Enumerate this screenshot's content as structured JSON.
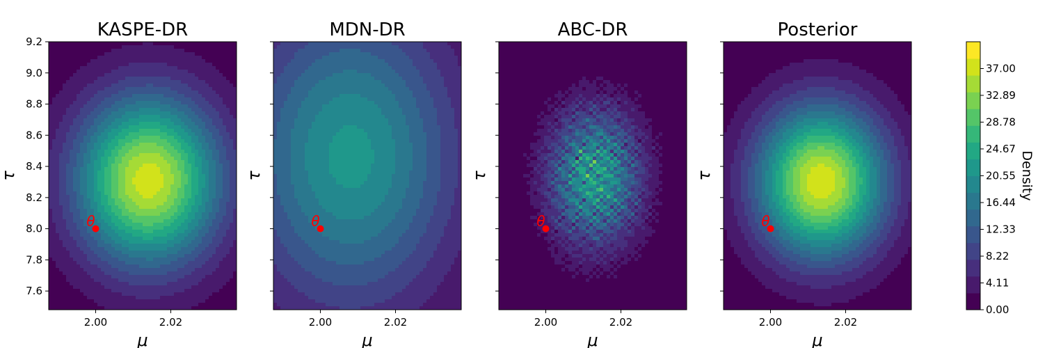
{
  "colors": {
    "viridis": [
      "#440154",
      "#481a6c",
      "#472f7d",
      "#414487",
      "#39568c",
      "#31688e",
      "#2a788e",
      "#23888e",
      "#1f988b",
      "#22a884",
      "#35b779",
      "#54c568",
      "#7ad151",
      "#a5db36",
      "#d2e21b",
      "#fde725"
    ],
    "marker": "#ff0000"
  },
  "chart_data": [
    {
      "type": "contour",
      "title": "KASPE-DR",
      "xlabel": "μ",
      "ylabel": "τ",
      "xlim": [
        1.9875,
        2.0375
      ],
      "ylim": [
        7.48,
        9.2
      ],
      "x_ticks": [
        "2.00",
        "2.02"
      ],
      "y_ticks": [
        "7.6",
        "7.8",
        "8.0",
        "8.2",
        "8.4",
        "8.6",
        "8.8",
        "9.0",
        "9.2"
      ],
      "peak": {
        "mu": 2.014,
        "tau": 8.31,
        "density": 37.5
      },
      "spread": {
        "mu": 0.0135,
        "tau": 0.38
      },
      "texture": "smooth",
      "true_theta": {
        "mu": 2.0,
        "tau": 8.0,
        "label": "θ"
      }
    },
    {
      "type": "contour",
      "title": "MDN-DR",
      "xlabel": "μ",
      "ylabel": "τ",
      "xlim": [
        1.9875,
        2.0375
      ],
      "ylim": [
        7.48,
        9.2
      ],
      "x_ticks": [
        "2.00",
        "2.02"
      ],
      "y_ticks": [
        "7.6",
        "7.8",
        "8.0",
        "8.2",
        "8.4",
        "8.6",
        "8.8",
        "9.0",
        "9.2"
      ],
      "peak": {
        "mu": 2.008,
        "tau": 8.46,
        "density": 21.5
      },
      "spread": {
        "mu": 0.02,
        "tau": 0.68
      },
      "texture": "smooth",
      "true_theta": {
        "mu": 2.0,
        "tau": 8.0,
        "label": "θ"
      }
    },
    {
      "type": "contour",
      "title": "ABC-DR",
      "xlabel": "μ",
      "ylabel": "τ",
      "xlim": [
        1.9875,
        2.0375
      ],
      "ylim": [
        7.48,
        9.2
      ],
      "x_ticks": [
        "2.00",
        "2.02"
      ],
      "y_ticks": [
        "7.6",
        "7.8",
        "8.0",
        "8.2",
        "8.4",
        "8.6",
        "8.8",
        "9.0",
        "9.2"
      ],
      "peak": {
        "mu": 2.013,
        "tau": 8.33,
        "density": 28.0
      },
      "spread": {
        "mu": 0.0085,
        "tau": 0.3
      },
      "texture": "noisy",
      "true_theta": {
        "mu": 2.0,
        "tau": 8.0,
        "label": "θ"
      }
    },
    {
      "type": "contour",
      "title": "Posterior",
      "xlabel": "μ",
      "ylabel": "τ",
      "xlim": [
        1.9875,
        2.0375
      ],
      "ylim": [
        7.48,
        9.2
      ],
      "x_ticks": [
        "2.00",
        "2.02"
      ],
      "y_ticks": [
        "7.6",
        "7.8",
        "8.0",
        "8.2",
        "8.4",
        "8.6",
        "8.8",
        "9.0",
        "9.2"
      ],
      "peak": {
        "mu": 2.0135,
        "tau": 8.3,
        "density": 38.0
      },
      "spread": {
        "mu": 0.012,
        "tau": 0.34
      },
      "texture": "smooth",
      "true_theta": {
        "mu": 2.0,
        "tau": 8.0,
        "label": "θ"
      }
    }
  ],
  "colorbar": {
    "label": "Density",
    "min": 0,
    "max": 41.11,
    "ticks": [
      "0.00",
      "4.11",
      "8.22",
      "12.33",
      "16.44",
      "20.55",
      "24.67",
      "28.78",
      "32.89",
      "37.00"
    ]
  }
}
